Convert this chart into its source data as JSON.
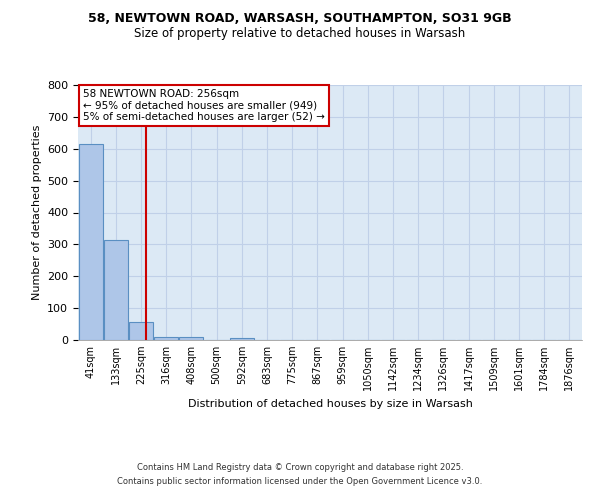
{
  "title1": "58, NEWTOWN ROAD, WARSASH, SOUTHAMPTON, SO31 9GB",
  "title2": "Size of property relative to detached houses in Warsash",
  "xlabel": "Distribution of detached houses by size in Warsash",
  "ylabel": "Number of detached properties",
  "categories": [
    "41sqm",
    "133sqm",
    "225sqm",
    "316sqm",
    "408sqm",
    "500sqm",
    "592sqm",
    "683sqm",
    "775sqm",
    "867sqm",
    "959sqm",
    "1050sqm",
    "1142sqm",
    "1234sqm",
    "1326sqm",
    "1417sqm",
    "1509sqm",
    "1601sqm",
    "1784sqm",
    "1876sqm"
  ],
  "values": [
    615,
    315,
    55,
    8,
    10,
    0,
    5,
    0,
    0,
    0,
    0,
    0,
    0,
    0,
    0,
    0,
    0,
    0,
    0,
    0
  ],
  "bar_color": "#aec6e8",
  "bar_edge_color": "#5a8fc2",
  "background_color": "#dce9f5",
  "grid_color": "#c0d0e8",
  "redline_x": 2.18,
  "annotation_text": "58 NEWTOWN ROAD: 256sqm\n← 95% of detached houses are smaller (949)\n5% of semi-detached houses are larger (52) →",
  "annotation_box_color": "#ffffff",
  "annotation_border_color": "#cc0000",
  "ylim": [
    0,
    800
  ],
  "yticks": [
    0,
    100,
    200,
    300,
    400,
    500,
    600,
    700,
    800
  ],
  "footer1": "Contains HM Land Registry data © Crown copyright and database right 2025.",
  "footer2": "Contains public sector information licensed under the Open Government Licence v3.0."
}
